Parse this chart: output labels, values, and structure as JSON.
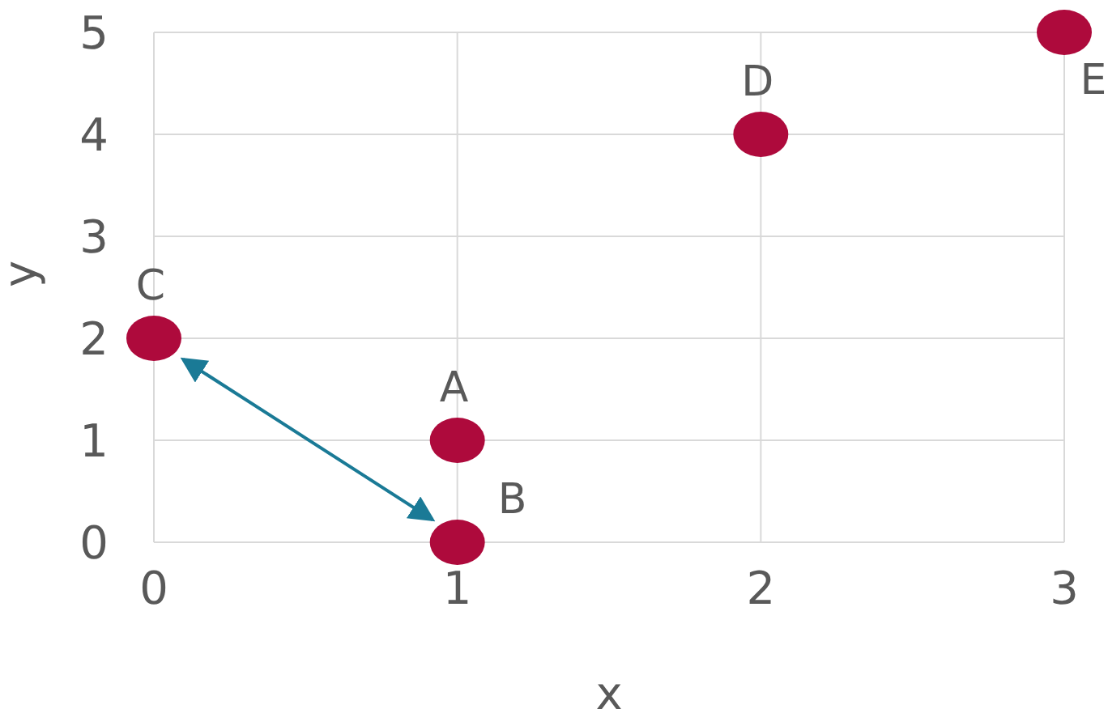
{
  "chart_data": {
    "type": "scatter",
    "xlabel": "x",
    "ylabel": "y",
    "x": [
      1,
      1,
      0,
      2,
      3
    ],
    "values": [
      1,
      0,
      2,
      4,
      5
    ],
    "color": "#ae0a3c",
    "xlim": [
      0,
      3
    ],
    "xticks": [
      0,
      1,
      2,
      3
    ],
    "ylim": [
      0,
      5
    ],
    "yticks": [
      0,
      1,
      2,
      3,
      4,
      5
    ],
    "grid": true,
    "marker": "circle",
    "legend": false,
    "annotations": [
      {
        "text": "A",
        "x": 1,
        "y": 1
      },
      {
        "text": "B",
        "x": 1,
        "y": 0
      },
      {
        "text": "C",
        "x": 0,
        "y": 2
      },
      {
        "text": "D",
        "x": 2,
        "y": 4
      },
      {
        "text": "E",
        "x": 3,
        "y": 5
      }
    ]
  }
}
